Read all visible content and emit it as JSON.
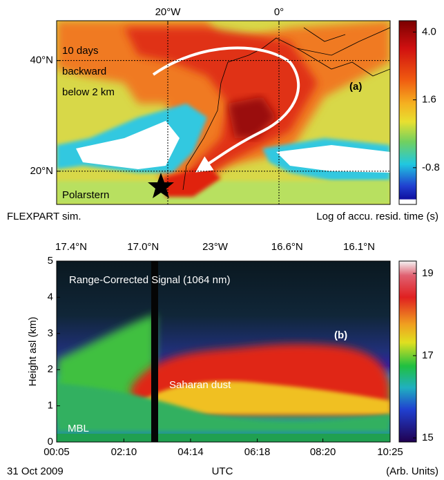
{
  "chart_data": [
    {
      "type": "map",
      "xlim": [
        -40,
        20
      ],
      "ylim": [
        14,
        47.2
      ],
      "xticks": [
        {
          "value": -20,
          "label": "20°W"
        },
        {
          "value": 0,
          "label": "0°"
        }
      ],
      "yticks": [
        {
          "value": 20,
          "label": "20°N"
        },
        {
          "value": 40,
          "label": "40°N"
        }
      ],
      "grid": true,
      "zlim": [
        -2.1,
        4.4
      ],
      "zticks": [
        {
          "value": 4,
          "label": "4.0"
        },
        1.6,
        -0.8
      ],
      "annotations": [
        "10 days",
        "backward",
        "below 2 km",
        "(a)",
        "Polarstern"
      ],
      "caption_left": "FLEXPART sim.",
      "caption_right": "Log of accu. resid. time (s)"
    },
    {
      "type": "heatmap",
      "ylabel": "Height asl (km)",
      "xlim": [
        0.083,
        10.417
      ],
      "ylim": [
        0,
        5
      ],
      "xticks": [
        {
          "value": 0.083,
          "label": "00:05"
        },
        {
          "value": 2.167,
          "label": "02:10"
        },
        {
          "value": 4.233,
          "label": "04:14"
        },
        {
          "value": 6.3,
          "label": "06:18"
        },
        {
          "value": 8.333,
          "label": "08:20"
        },
        {
          "value": 10.417,
          "label": "10:25"
        }
      ],
      "yticks": [
        0,
        1,
        2,
        3,
        4,
        5
      ],
      "top_labels": [
        "17.4°N",
        "17.0°N",
        "23°W",
        "16.6°N",
        "16.1°N"
      ],
      "zlim": [
        14.9,
        19.3
      ],
      "zticks": [
        15,
        17,
        19
      ],
      "annotations": [
        "Range-Corrected Signal (1064 nm)",
        "(b)",
        "Saharan dust",
        "MBL"
      ],
      "caption_left": "31 Oct 2009",
      "caption_center": "UTC",
      "caption_right": "(Arb. Units)"
    }
  ]
}
